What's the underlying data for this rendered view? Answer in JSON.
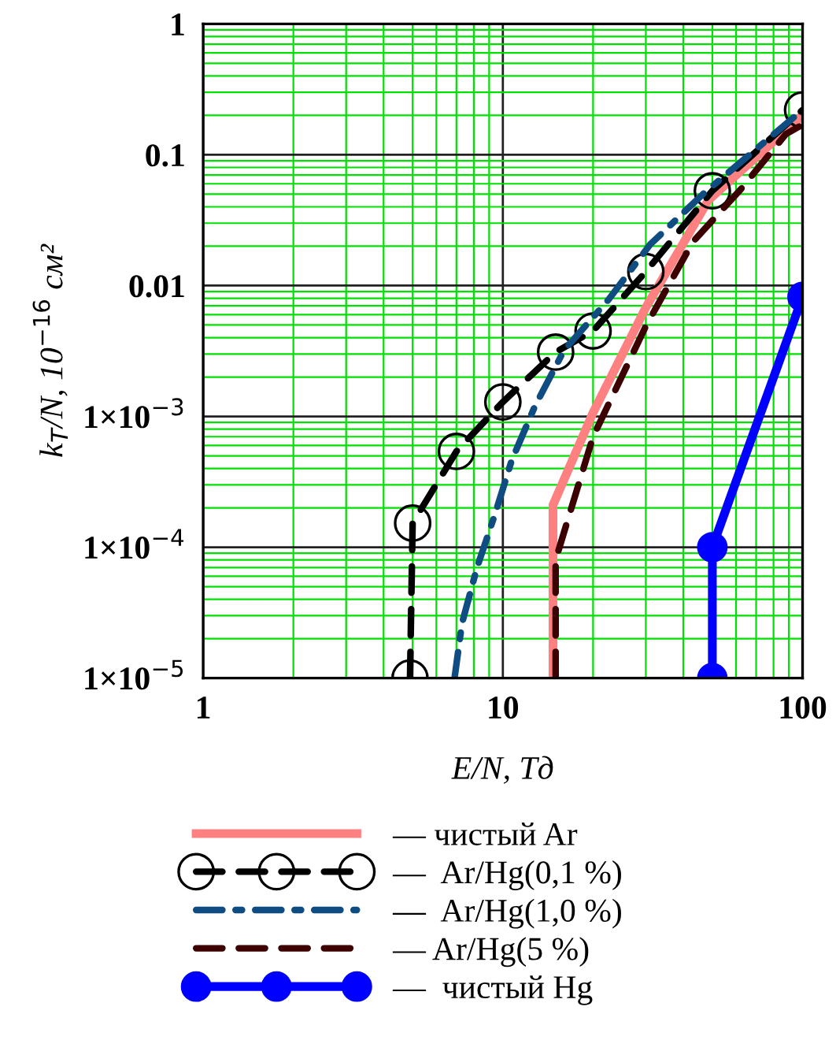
{
  "chart_data": {
    "type": "line",
    "xlabel": "E/N, Тд",
    "ylabel": "k$_{Т}$/N, 10$^{−16}$ см²",
    "log": "xy",
    "grid": true,
    "legend": "bottom",
    "xlim": [
      1,
      100
    ],
    "xticks": [
      1,
      {
        "value": 2,
        "label": null
      },
      {
        "value": 3,
        "label": null
      },
      {
        "value": 4,
        "label": null
      },
      {
        "value": 5,
        "label": null
      },
      {
        "value": 6,
        "label": null
      },
      {
        "value": 7,
        "label": null
      },
      {
        "value": 8,
        "label": null
      },
      {
        "value": 9,
        "label": null
      },
      10,
      {
        "value": 20,
        "label": null
      },
      {
        "value": 30,
        "label": null
      },
      {
        "value": 40,
        "label": null
      },
      {
        "value": 50,
        "label": null
      },
      {
        "value": 60,
        "label": null
      },
      {
        "value": 70,
        "label": null
      },
      {
        "value": 80,
        "label": null
      },
      {
        "value": 90,
        "label": null
      },
      100
    ],
    "ylim": [
      1e-05,
      1
    ],
    "yticks": [
      {
        "value": 1e-05,
        "label": "1×10$^{−5}$"
      },
      {
        "value": 2e-05,
        "label": null
      },
      {
        "value": 3e-05,
        "label": null
      },
      {
        "value": 4e-05,
        "label": null
      },
      {
        "value": 5e-05,
        "label": null
      },
      {
        "value": 6e-05,
        "label": null
      },
      {
        "value": 7e-05,
        "label": null
      },
      {
        "value": 8e-05,
        "label": null
      },
      {
        "value": 9e-05,
        "label": null
      },
      {
        "value": 0.0001,
        "label": "1×10$^{−4}$"
      },
      {
        "value": 0.0002,
        "label": null
      },
      {
        "value": 0.0003,
        "label": null
      },
      {
        "value": 0.0004,
        "label": null
      },
      {
        "value": 0.0005,
        "label": null
      },
      {
        "value": 0.0006,
        "label": null
      },
      {
        "value": 0.0007,
        "label": null
      },
      {
        "value": 0.0008,
        "label": null
      },
      {
        "value": 0.0009,
        "label": null
      },
      {
        "value": 0.001,
        "label": "1×10$^{−3}$"
      },
      {
        "value": 0.002,
        "label": null
      },
      {
        "value": 0.003,
        "label": null
      },
      {
        "value": 0.004,
        "label": null
      },
      {
        "value": 0.005,
        "label": null
      },
      {
        "value": 0.006,
        "label": null
      },
      {
        "value": 0.007,
        "label": null
      },
      {
        "value": 0.008,
        "label": null
      },
      {
        "value": 0.009,
        "label": null
      },
      0.01,
      {
        "value": 0.02,
        "label": null
      },
      {
        "value": 0.03,
        "label": null
      },
      {
        "value": 0.04,
        "label": null
      },
      {
        "value": 0.05,
        "label": null
      },
      {
        "value": 0.06,
        "label": null
      },
      {
        "value": 0.07,
        "label": null
      },
      {
        "value": 0.08,
        "label": null
      },
      {
        "value": 0.09,
        "label": null
      },
      0.1,
      {
        "value": 0.2,
        "label": null
      },
      {
        "value": 0.3,
        "label": null
      },
      {
        "value": 0.4,
        "label": null
      },
      {
        "value": 0.5,
        "label": null
      },
      {
        "value": 0.6,
        "label": null
      },
      {
        "value": 0.7,
        "label": null
      },
      {
        "value": 0.8,
        "label": null
      },
      {
        "value": 0.9,
        "label": null
      },
      1
    ],
    "series": [
      {
        "name": "— чистый Ar",
        "color": "#ff8080",
        "line_style": "solid",
        "marker": "none",
        "x": [
          14.7,
          14.7,
          20,
          30,
          48.5,
          100
        ],
        "values": [
          1e-05,
          0.00021,
          0.00107,
          0.0068,
          0.045,
          0.2
        ]
      },
      {
        "name": "—  Ar/Hg(0,1 %)",
        "color": "#000000",
        "line_style": "dashed",
        "marker": "circle",
        "x": [
          4.9,
          5,
          7,
          10,
          15,
          20,
          30,
          50,
          100
        ],
        "values": [
          1e-05,
          0.000153,
          0.00054,
          0.00129,
          0.0031,
          0.0045,
          0.0128,
          0.053,
          0.22
        ]
      },
      {
        "name": "—  Ar/Hg(1,0 %)",
        "color": "#0f4c81",
        "line_style": "dashdot",
        "marker": "none",
        "x": [
          6.9,
          7.3,
          8.2,
          9.4,
          10.7,
          12.8,
          16,
          22.5,
          31,
          46.5,
          100
        ],
        "values": [
          1e-05,
          2.6e-05,
          7e-05,
          0.000177,
          0.00046,
          0.0012,
          0.0032,
          0.0078,
          0.0206,
          0.05,
          0.22
        ]
      },
      {
        "name": "— Ar/Hg(5 %)",
        "color": "#3d0000",
        "line_style": "dashed",
        "marker": "none",
        "x": [
          15,
          15,
          20,
          30,
          43,
          62,
          88,
          100
        ],
        "values": [
          1e-05,
          8e-05,
          0.0007,
          0.0049,
          0.0215,
          0.054,
          0.144,
          0.17
        ]
      },
      {
        "name": "—  чистый Hg",
        "color": "#0000ff",
        "line_style": "solid",
        "marker": "circle",
        "x": [
          50,
          50,
          100
        ],
        "values": [
          1e-05,
          0.0001,
          0.0082
        ]
      }
    ]
  }
}
